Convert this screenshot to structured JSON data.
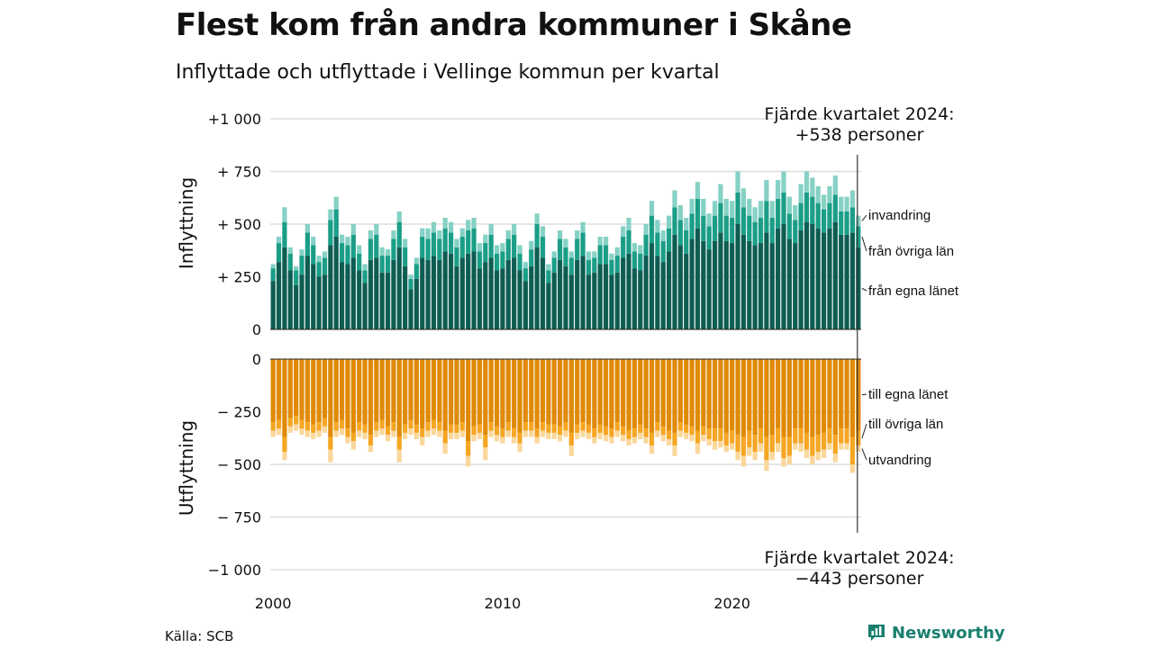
{
  "title": "Flest kom från andra kommuner i Skåne",
  "subtitle": "Inflyttade och utflyttade i Vellinge kommun per kvartal",
  "source": "Källa: SCB",
  "brand": {
    "name": "Newsworthy",
    "icon": "newsworthy-logo-icon",
    "color": "#1a7f6e"
  },
  "chart_data": {
    "type": "bar",
    "x_start_quarter": "2000 Q1",
    "x_tick_labels": [
      "2000",
      "2010",
      "2020"
    ],
    "panels": [
      {
        "name": "inflyttning",
        "ylabel": "Inflyttning",
        "ylim": [
          0,
          1000
        ],
        "ticks": [
          0,
          250,
          500,
          750,
          1000
        ],
        "tick_labels": [
          "0",
          "+  250",
          "+  500",
          "+  750",
          "+1 000"
        ],
        "grid": true,
        "series_labels": [
          "från egna länet",
          "från övriga län",
          "invandring"
        ],
        "series_colors": [
          "#0e5d52",
          "#1b9e87",
          "#86d1c5"
        ],
        "annotation": {
          "line1": "Fjärde kvartalet 2024:",
          "line2": "+538 personer"
        }
      },
      {
        "name": "utflyttning",
        "ylabel": "Utflyttning",
        "ylim": [
          -1000,
          0
        ],
        "ticks": [
          0,
          -250,
          -500,
          -750,
          -1000
        ],
        "tick_labels": [
          "0",
          "−  250",
          "−  500",
          "−  750",
          "−1 000"
        ],
        "grid": true,
        "series_labels": [
          "till egna länet",
          "till övriga län",
          "utvandring"
        ],
        "series_colors": [
          "#e08a06",
          "#f5a623",
          "#fad79b"
        ],
        "annotation": {
          "line1": "Fjärde kvartalet 2024:",
          "line2": "−443 personer"
        }
      }
    ],
    "inflow": {
      "egna_lanet": [
        230,
        320,
        390,
        280,
        210,
        260,
        350,
        310,
        250,
        260,
        400,
        440,
        320,
        310,
        340,
        280,
        220,
        330,
        340,
        270,
        270,
        330,
        390,
        300,
        190,
        240,
        340,
        330,
        350,
        330,
        370,
        360,
        300,
        340,
        360,
        370,
        290,
        320,
        340,
        280,
        290,
        330,
        340,
        280,
        230,
        300,
        390,
        340,
        220,
        270,
        330,
        300,
        260,
        330,
        350,
        260,
        270,
        310,
        310,
        260,
        270,
        340,
        360,
        290,
        280,
        350,
        410,
        350,
        320,
        370,
        450,
        400,
        360,
        430,
        480,
        420,
        380,
        420,
        460,
        420,
        410,
        500,
        450,
        420,
        400,
        410,
        460,
        410,
        480,
        500,
        430,
        410,
        470,
        510,
        500,
        480,
        460,
        480,
        510,
        450,
        450,
        460,
        390
      ],
      "ovriga_lan": [
        60,
        90,
        120,
        80,
        70,
        90,
        110,
        90,
        70,
        80,
        120,
        130,
        90,
        90,
        110,
        80,
        60,
        100,
        110,
        80,
        80,
        100,
        120,
        90,
        50,
        70,
        100,
        100,
        110,
        100,
        110,
        100,
        90,
        100,
        110,
        110,
        80,
        90,
        110,
        80,
        80,
        100,
        110,
        80,
        60,
        80,
        110,
        100,
        60,
        70,
        100,
        90,
        80,
        100,
        110,
        70,
        70,
        90,
        90,
        70,
        80,
        100,
        110,
        80,
        80,
        100,
        130,
        110,
        100,
        110,
        130,
        120,
        110,
        120,
        140,
        120,
        110,
        120,
        140,
        120,
        120,
        150,
        130,
        120,
        110,
        120,
        150,
        120,
        140,
        150,
        120,
        110,
        130,
        140,
        130,
        120,
        110,
        120,
        130,
        110,
        110,
        120,
        100
      ],
      "invandring": [
        20,
        30,
        70,
        30,
        20,
        30,
        40,
        40,
        30,
        30,
        50,
        60,
        40,
        40,
        50,
        40,
        30,
        40,
        50,
        40,
        30,
        40,
        50,
        40,
        20,
        30,
        40,
        50,
        50,
        40,
        50,
        50,
        40,
        40,
        50,
        50,
        40,
        40,
        50,
        40,
        40,
        40,
        50,
        40,
        30,
        40,
        50,
        50,
        30,
        30,
        40,
        40,
        30,
        40,
        50,
        40,
        30,
        40,
        40,
        30,
        40,
        50,
        60,
        40,
        40,
        50,
        70,
        60,
        50,
        60,
        80,
        70,
        60,
        70,
        80,
        80,
        60,
        70,
        90,
        80,
        80,
        100,
        90,
        80,
        70,
        80,
        100,
        80,
        90,
        100,
        80,
        70,
        90,
        100,
        90,
        80,
        70,
        80,
        90,
        70,
        70,
        80,
        50
      ]
    },
    "outflow": {
      "till_egna_lanet": [
        -300,
        -290,
        -370,
        -280,
        -270,
        -290,
        -300,
        -310,
        -300,
        -280,
        -370,
        -300,
        -290,
        -330,
        -350,
        -300,
        -310,
        -360,
        -300,
        -290,
        -320,
        -300,
        -370,
        -310,
        -290,
        -310,
        -330,
        -300,
        -290,
        -300,
        -340,
        -310,
        -310,
        -300,
        -390,
        -320,
        -310,
        -360,
        -300,
        -320,
        -330,
        -300,
        -330,
        -350,
        -300,
        -300,
        -330,
        -300,
        -310,
        -310,
        -320,
        -300,
        -350,
        -310,
        -300,
        -310,
        -330,
        -310,
        -320,
        -330,
        -300,
        -320,
        -340,
        -330,
        -310,
        -330,
        -350,
        -300,
        -320,
        -340,
        -350,
        -300,
        -310,
        -320,
        -340,
        -320,
        -330,
        -330,
        -330,
        -350,
        -340,
        -360,
        -370,
        -340,
        -360,
        -330,
        -370,
        -360,
        -330,
        -370,
        -370,
        -330,
        -330,
        -350,
        -370,
        -360,
        -350,
        -330,
        -360,
        -330,
        -330,
        -370,
        -340
      ],
      "till_ovriga_lan": [
        -40,
        -40,
        -70,
        -40,
        -40,
        -40,
        -40,
        -40,
        -40,
        -40,
        -60,
        -40,
        -40,
        -40,
        -40,
        -40,
        -40,
        -50,
        -40,
        -40,
        -40,
        -40,
        -60,
        -40,
        -40,
        -40,
        -40,
        -40,
        -40,
        -40,
        -60,
        -40,
        -40,
        -40,
        -70,
        -40,
        -40,
        -60,
        -40,
        -40,
        -40,
        -40,
        -40,
        -50,
        -40,
        -40,
        -40,
        -40,
        -40,
        -40,
        -40,
        -40,
        -60,
        -40,
        -40,
        -40,
        -40,
        -40,
        -40,
        -40,
        -40,
        -40,
        -40,
        -40,
        -40,
        -40,
        -60,
        -40,
        -40,
        -40,
        -60,
        -40,
        -40,
        -40,
        -60,
        -40,
        -50,
        -60,
        -60,
        -60,
        -60,
        -80,
        -90,
        -80,
        -80,
        -70,
        -110,
        -80,
        -70,
        -100,
        -90,
        -70,
        -70,
        -80,
        -90,
        -80,
        -80,
        -70,
        -90,
        -70,
        -70,
        -130,
        -70
      ],
      "utvandring": [
        -30,
        -30,
        -40,
        -30,
        -30,
        -30,
        -30,
        -30,
        -30,
        -30,
        -60,
        -30,
        -30,
        -30,
        -40,
        -30,
        -30,
        -30,
        -30,
        -30,
        -30,
        -30,
        -60,
        -30,
        -30,
        -30,
        -40,
        -30,
        -30,
        -30,
        -50,
        -30,
        -30,
        -30,
        -50,
        -30,
        -30,
        -60,
        -30,
        -30,
        -30,
        -30,
        -30,
        -40,
        -30,
        -30,
        -30,
        -30,
        -30,
        -30,
        -30,
        -30,
        -50,
        -30,
        -30,
        -30,
        -30,
        -30,
        -30,
        -30,
        -30,
        -30,
        -30,
        -30,
        -30,
        -30,
        -40,
        -30,
        -30,
        -30,
        -50,
        -30,
        -30,
        -30,
        -50,
        -30,
        -30,
        -40,
        -30,
        -30,
        -30,
        -40,
        -50,
        -40,
        -40,
        -40,
        -50,
        -40,
        -40,
        -40,
        -40,
        -30,
        -40,
        -40,
        -40,
        -40,
        -40,
        -30,
        -40,
        -30,
        -30,
        -40,
        -30
      ]
    }
  }
}
